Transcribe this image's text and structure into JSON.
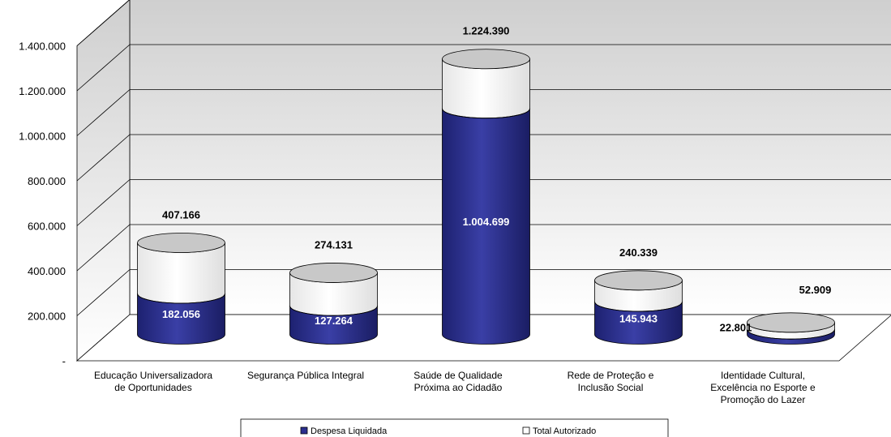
{
  "chart_data": {
    "type": "bar",
    "categories": [
      [
        "Educação Universalizadora",
        "de Oportunidades"
      ],
      [
        "Segurança Pública Integral"
      ],
      [
        "Saúde de Qualidade",
        "Próxima ao Cidadão"
      ],
      [
        "Rede de Proteção e",
        "Inclusão Social"
      ],
      [
        "Identidade Cultural,",
        "Excelência no Esporte e",
        "Promoção do Lazer"
      ]
    ],
    "series": [
      {
        "name": "Despesa Liquidada",
        "values": [
          182056,
          127264,
          1004699,
          145943,
          22801
        ],
        "labels": [
          "182.056",
          "127.264",
          "1.004.699",
          "145.943",
          "22.801"
        ],
        "color": "#2b2f8f"
      },
      {
        "name": "Total Autorizado",
        "values": [
          407166,
          274131,
          1224390,
          240339,
          52909
        ],
        "labels": [
          "407.166",
          "274.131",
          "1.224.390",
          "240.339",
          "52.909"
        ],
        "color": "#ffffff"
      }
    ],
    "yticks": [
      "-",
      "200.000",
      "400.000",
      "600.000",
      "800.000",
      "1.000.000",
      "1.200.000",
      "1.400.000"
    ],
    "ylim": [
      0,
      1400000
    ],
    "grid": true,
    "legend_position": "bottom"
  }
}
